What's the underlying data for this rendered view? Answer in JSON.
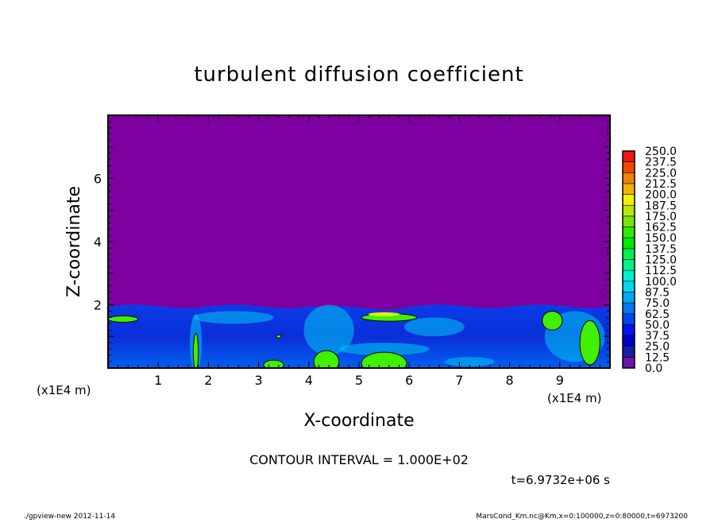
{
  "chart_data": {
    "type": "heatmap",
    "title": "turbulent diffusion coefficient",
    "xlabel": "X-coordinate",
    "ylabel": "Z-coordinate",
    "x_unit_label": "(x1E4 m)",
    "x_unit_label_right": "(x1E4 m)",
    "xlim": [
      0,
      10
    ],
    "ylim": [
      0,
      8
    ],
    "x_ticks": [
      "1",
      "2",
      "3",
      "4",
      "5",
      "6",
      "7",
      "8",
      "9"
    ],
    "y_ticks": [
      "2",
      "4",
      "6"
    ],
    "x_tick_values": [
      1,
      2,
      3,
      4,
      5,
      6,
      7,
      8,
      9
    ],
    "y_tick_values": [
      2,
      4,
      6
    ],
    "colorbar_levels": [
      "0.0",
      "12.5",
      "25.0",
      "37.5",
      "50.0",
      "62.5",
      "75.0",
      "87.5",
      "100.0",
      "112.5",
      "125.0",
      "137.5",
      "150.0",
      "162.5",
      "175.0",
      "187.5",
      "200.0",
      "212.5",
      "225.0",
      "237.5",
      "250.0"
    ],
    "colorbar_colors": [
      "#6a14a8",
      "#1c1ca8",
      "#0000c8",
      "#0014f0",
      "#0046f0",
      "#0078f0",
      "#00a8f0",
      "#00d8f0",
      "#00f0c8",
      "#00f08c",
      "#00f050",
      "#00e800",
      "#30e800",
      "#78e800",
      "#b4e800",
      "#f0f000",
      "#f0b400",
      "#f08200",
      "#f04600",
      "#f01414",
      "#f05050",
      "#f08c8c"
    ],
    "background_color": "#7e00a0",
    "note_min_region": "Values near 0 above z≈2 (x1E4 m); turbulent layer below with values mostly 12.5–100, local peaks to ~175",
    "contour_interval_text": "CONTOUR INTERVAL = 1.000E+02",
    "time_text": "t=6.9732e+06 s"
  },
  "footer": {
    "left": "./gpview-new  2012-11-14",
    "right": "MarsCond_Km.nc@Km,x=0:100000,z=0:80000,t=6973200"
  }
}
